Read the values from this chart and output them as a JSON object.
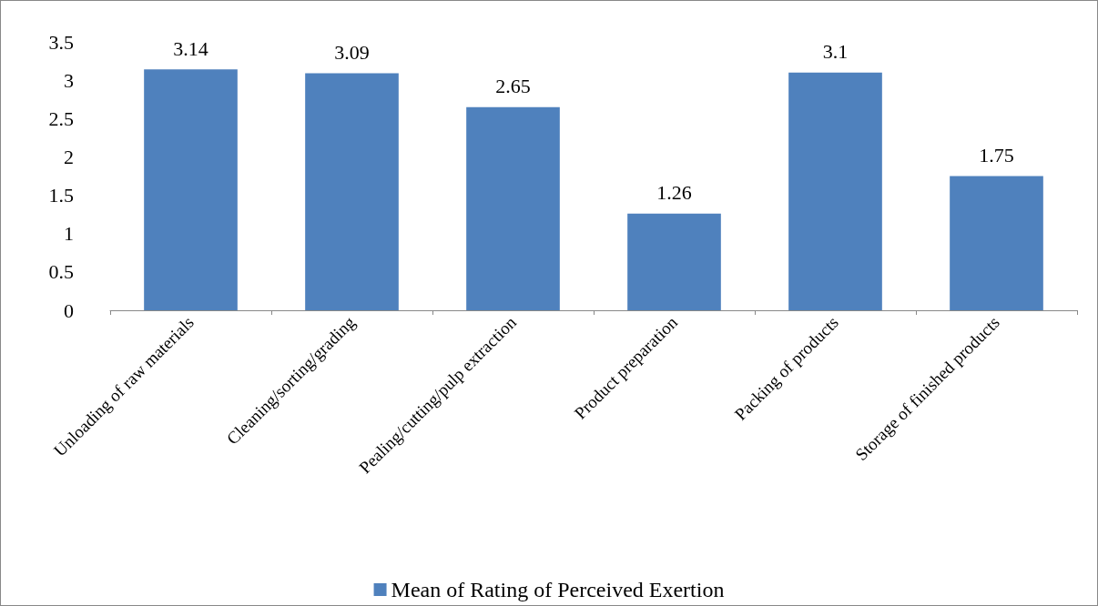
{
  "chart_data": {
    "type": "bar",
    "categories": [
      "Unloading of raw materials",
      "Cleaning/sorting/grading",
      "Pealing/cutting/pulp extraction",
      "Product preparation",
      "Packing of products",
      "Storage of finished products"
    ],
    "series": [
      {
        "name": "Mean of Rating of Perceived Exertion",
        "color": "#4f81bd",
        "values": [
          3.14,
          3.09,
          2.65,
          1.26,
          3.1,
          1.75
        ]
      }
    ],
    "ylim": [
      0,
      3.5
    ],
    "yticks": [
      0,
      0.5,
      1,
      1.5,
      2,
      2.5,
      3,
      3.5
    ],
    "grid": false,
    "data_labels": true,
    "legend": "bottom"
  }
}
